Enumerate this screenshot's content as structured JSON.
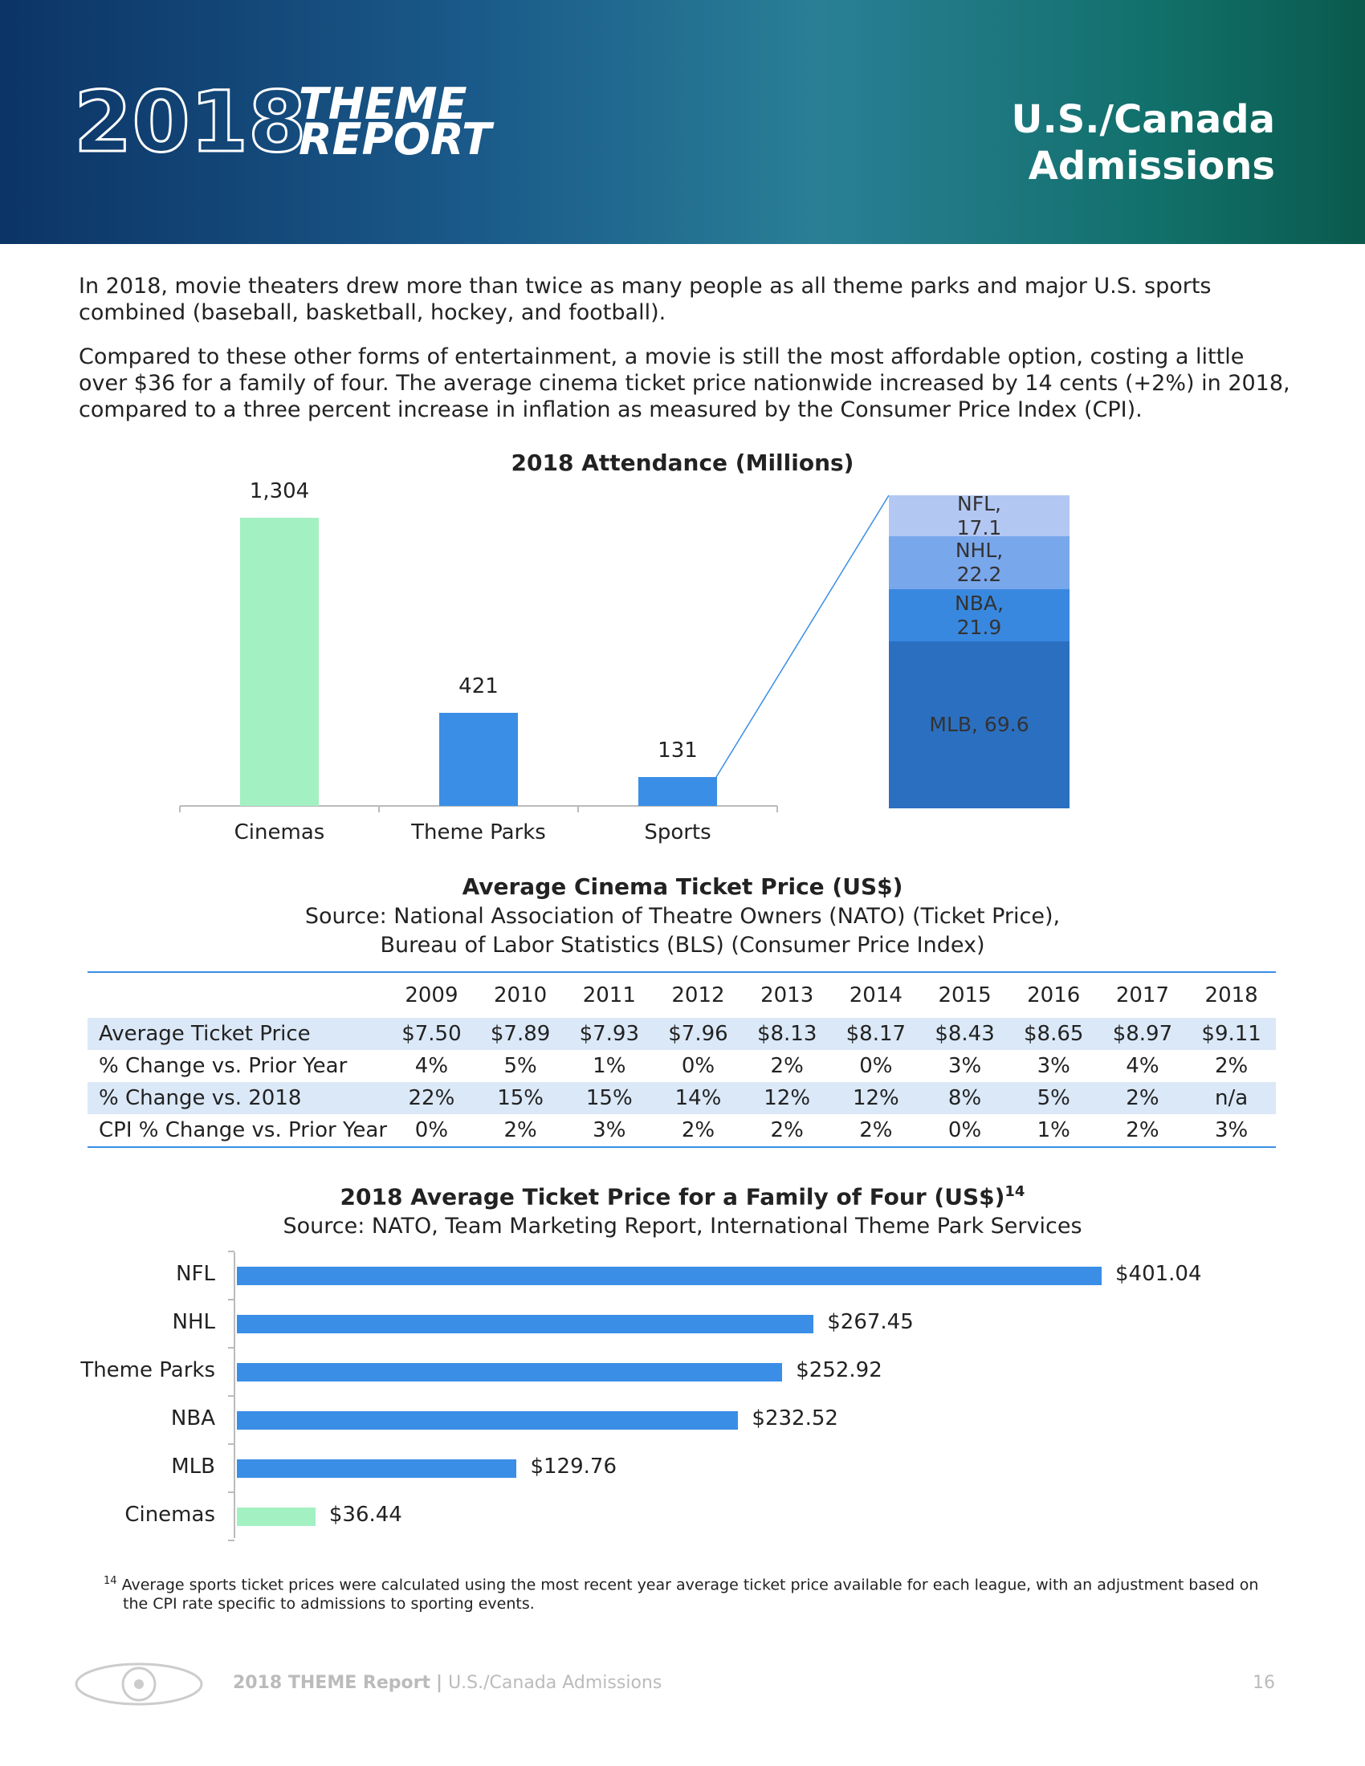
{
  "header": {
    "logo_year": "2018",
    "logo_word1": "THEME",
    "logo_word2": "REPORT",
    "title_line1": "U.S./Canada",
    "title_line2": "Admissions"
  },
  "paragraphs": [
    "In 2018, movie theaters drew more than twice as many people as all theme parks and major U.S. sports combined (baseball, basketball, hockey, and football).",
    "Compared to these other forms of entertainment, a movie is still the most affordable option, costing a little over $36 for a family of four. The average cinema ticket price nationwide increased by 14 cents (+2%) in 2018, compared to a three percent increase in inflation as measured by the Consumer Price Index (CPI)."
  ],
  "chart_data": [
    {
      "type": "bar",
      "title": "2018 Attendance (Millions)",
      "categories": [
        "Cinemas",
        "Theme Parks",
        "Sports"
      ],
      "values": [
        1304,
        421,
        131
      ],
      "value_labels": [
        "1,304",
        "421",
        "131"
      ],
      "colors": [
        "#a3f0c2",
        "#3a8ee6",
        "#3a8ee6"
      ]
    },
    {
      "type": "stacked-bar",
      "values": [
        69.6,
        21.9,
        22.2,
        17.1
      ],
      "value_labels": [
        "MLB, 69.6",
        "NBA, 21.9",
        "NHL, 22.2",
        "NFL, 17.1"
      ],
      "colors": [
        "#2b6fc1",
        "#3888e0",
        "#79a7ec",
        "#b3c7f3"
      ]
    },
    {
      "type": "bar",
      "orientation": "horizontal",
      "title": "2018 Average Ticket Price for a Family of Four (US$)",
      "title_superscript": "14",
      "subtitle": "Source: NATO, Team Marketing Report, International Theme Park Services",
      "categories": [
        "NFL",
        "NHL",
        "Theme Parks",
        "NBA",
        "MLB",
        "Cinemas"
      ],
      "values": [
        401.04,
        267.45,
        252.92,
        232.52,
        129.76,
        36.44
      ],
      "value_labels": [
        "$401.04",
        "$267.45",
        "$252.92",
        "$232.52",
        "$129.76",
        "$36.44"
      ],
      "colors": [
        "#3a8ee6",
        "#3a8ee6",
        "#3a8ee6",
        "#3a8ee6",
        "#3a8ee6",
        "#a3f0c2"
      ]
    }
  ],
  "table": {
    "title": "Average Cinema Ticket Price (US$)",
    "source_line1": "Source: National Association of Theatre Owners (NATO) (Ticket Price),",
    "source_line2": "Bureau of Labor Statistics (BLS) (Consumer Price Index)",
    "columns": [
      "2009",
      "2010",
      "2011",
      "2012",
      "2013",
      "2014",
      "2015",
      "2016",
      "2017",
      "2018"
    ],
    "rows": [
      [
        "Average Ticket Price",
        "$7.50",
        "$7.89",
        "$7.93",
        "$7.96",
        "$8.13",
        "$8.17",
        "$8.43",
        "$8.65",
        "$8.97",
        "$9.11"
      ],
      [
        "% Change vs. Prior Year",
        "4%",
        "5%",
        "1%",
        "0%",
        "2%",
        "0%",
        "3%",
        "3%",
        "4%",
        "2%"
      ],
      [
        "% Change vs. 2018",
        "22%",
        "15%",
        "15%",
        "14%",
        "12%",
        "12%",
        "8%",
        "5%",
        "2%",
        "n/a"
      ],
      [
        "CPI % Change vs. Prior Year",
        "0%",
        "2%",
        "3%",
        "2%",
        "2%",
        "2%",
        "0%",
        "1%",
        "2%",
        "3%"
      ]
    ]
  },
  "footnote": {
    "marker": "14",
    "text": "Average sports ticket prices were calculated using the most recent year average ticket price available for each league, with an adjustment based on the CPI rate specific to admissions to sporting events."
  },
  "footer": {
    "brand": "2018 THEME Report",
    "separator": "|",
    "section": "U.S./Canada Admissions",
    "page": "16"
  }
}
